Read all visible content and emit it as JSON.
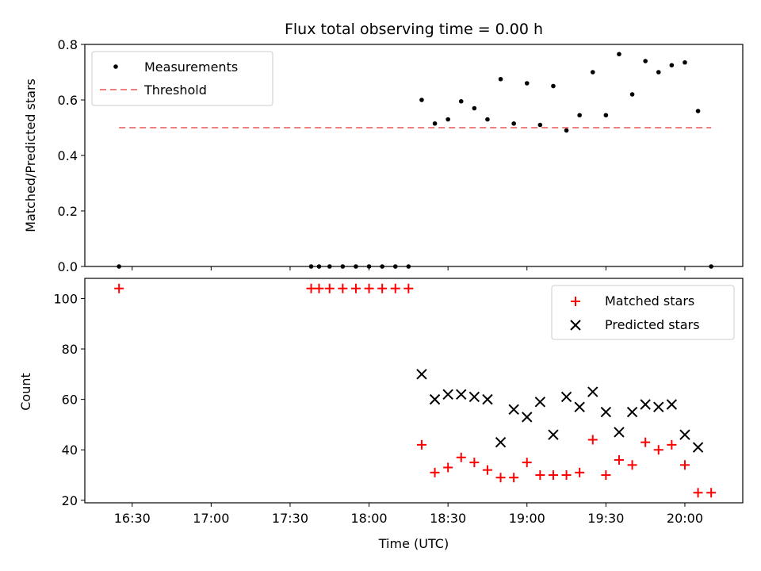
{
  "chart_data": [
    {
      "type": "scatter",
      "title": "Flux total observing time = 0.00 h",
      "xlabel": "",
      "ylabel": "Matched/Predicted stars",
      "ylim": [
        0,
        0.8
      ],
      "yticks": [
        "0.0",
        "0.2",
        "0.4",
        "0.6",
        "0.8"
      ],
      "legend_position": "top-left",
      "series": [
        {
          "name": "Measurements",
          "color": "#000000",
          "marker": "dot",
          "x": [
            "16:25",
            "17:38",
            "17:41",
            "17:45",
            "17:50",
            "17:55",
            "18:00",
            "18:05",
            "18:10",
            "18:15",
            "18:20",
            "18:25",
            "18:30",
            "18:35",
            "18:40",
            "18:45",
            "18:50",
            "18:55",
            "19:00",
            "19:05",
            "19:10",
            "19:15",
            "19:20",
            "19:25",
            "19:30",
            "19:35",
            "19:40",
            "19:45",
            "19:50",
            "19:55",
            "20:00",
            "20:05",
            "20:10"
          ],
          "y": [
            0.0,
            0.0,
            0.0,
            0.0,
            0.0,
            0.0,
            0.0,
            0.0,
            0.0,
            0.0,
            0.6,
            0.515,
            0.53,
            0.595,
            0.57,
            0.53,
            0.675,
            0.515,
            0.66,
            0.51,
            0.65,
            0.49,
            0.545,
            0.7,
            0.545,
            0.765,
            0.62,
            0.74,
            0.7,
            0.725,
            0.735,
            0.56,
            0.0
          ]
        },
        {
          "name": "Threshold",
          "color": "#f08080",
          "style": "dashed",
          "x": [
            "16:25",
            "20:10"
          ],
          "y": [
            0.5,
            0.5
          ]
        }
      ]
    },
    {
      "type": "scatter",
      "title": "",
      "xlabel": "Time (UTC)",
      "ylabel": "Count",
      "ylim": [
        19,
        108
      ],
      "yticks": [
        "20",
        "40",
        "60",
        "80",
        "100"
      ],
      "xticks": [
        "16:30",
        "17:00",
        "17:30",
        "18:00",
        "18:30",
        "19:00",
        "19:30",
        "20:00"
      ],
      "xlim": [
        "16:12",
        "20:22"
      ],
      "legend_position": "top-right",
      "series": [
        {
          "name": "Matched stars",
          "color": "#ff0000",
          "marker": "plus",
          "x": [
            "16:25",
            "17:38",
            "17:41",
            "17:45",
            "17:50",
            "17:55",
            "18:00",
            "18:05",
            "18:10",
            "18:15",
            "18:20",
            "18:25",
            "18:30",
            "18:35",
            "18:40",
            "18:45",
            "18:50",
            "18:55",
            "19:00",
            "19:05",
            "19:10",
            "19:15",
            "19:20",
            "19:25",
            "19:30",
            "19:35",
            "19:40",
            "19:45",
            "19:50",
            "19:55",
            "20:00",
            "20:05",
            "20:10"
          ],
          "y": [
            104,
            104,
            104,
            104,
            104,
            104,
            104,
            104,
            104,
            104,
            42,
            31,
            33,
            37,
            35,
            32,
            29,
            29,
            35,
            30,
            30,
            30,
            31,
            44,
            30,
            36,
            34,
            43,
            40,
            42,
            34,
            23,
            23
          ]
        },
        {
          "name": "Predicted stars",
          "color": "#000000",
          "marker": "x",
          "x": [
            "18:20",
            "18:25",
            "18:30",
            "18:35",
            "18:40",
            "18:45",
            "18:50",
            "18:55",
            "19:00",
            "19:05",
            "19:10",
            "19:15",
            "19:20",
            "19:25",
            "19:30",
            "19:35",
            "19:40",
            "19:45",
            "19:50",
            "19:55",
            "20:00",
            "20:05"
          ],
          "y": [
            70,
            60,
            62,
            62,
            61,
            60,
            43,
            56,
            53,
            59,
            46,
            61,
            57,
            63,
            55,
            47,
            55,
            58,
            57,
            58,
            46,
            41
          ]
        }
      ]
    }
  ]
}
